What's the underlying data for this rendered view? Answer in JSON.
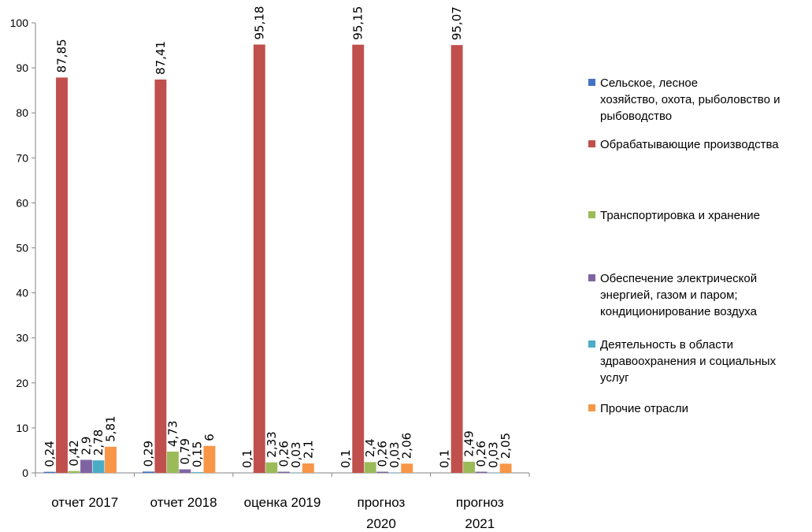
{
  "chart_data": {
    "type": "bar",
    "title": "",
    "xlabel": "",
    "ylabel": "",
    "ylim": [
      0,
      100
    ],
    "yticks": [
      "0",
      "10",
      "20",
      "30",
      "40",
      "50",
      "60",
      "70",
      "80",
      "90",
      "100"
    ],
    "categories": [
      "отчет 2017",
      "отчет 2018",
      "оценка 2019",
      "прогноз 2020",
      "прогноз 2021"
    ],
    "category_labels": [
      [
        "отчет 2017"
      ],
      [
        "отчет 2018"
      ],
      [
        "оценка 2019"
      ],
      [
        "прогноз",
        "2020"
      ],
      [
        "прогноз",
        "2021"
      ]
    ],
    "series": [
      {
        "name": "Сельское, лесное хозяйство, охота, рыболовство и рыбоводство",
        "color": "#4472C4",
        "values": [
          0.24,
          0.29,
          null,
          null,
          null
        ],
        "labels": [
          "0,24",
          "0,29",
          "",
          "",
          ""
        ]
      },
      {
        "name": "Обрабатывающие производства",
        "color": "#C0504D",
        "values": [
          87.85,
          87.41,
          95.18,
          95.15,
          95.07
        ],
        "labels": [
          "87,85",
          "87,41",
          "95,18",
          "95,15",
          "95,07"
        ]
      },
      {
        "name": "Транспортировка и хранение",
        "color": "#9BBB59",
        "values": [
          0.42,
          4.73,
          2.33,
          2.4,
          2.49
        ],
        "labels": [
          "0,42",
          "4,73",
          "2,33",
          "2,4",
          "2,49"
        ]
      },
      {
        "name": "Обеспечение электрической энергией, газом и паром; кондиционирование воздуха",
        "color": "#8064A2",
        "values": [
          2.9,
          0.79,
          0.26,
          0.26,
          0.26
        ],
        "labels": [
          "2,9",
          "0,79",
          "0,26",
          "0,26",
          "0,26"
        ]
      },
      {
        "name": "Деятельность в области здравоохранения и социальных услуг",
        "color": "#4BACC6",
        "values": [
          2.78,
          0.15,
          0.03,
          0.03,
          0.03
        ],
        "labels": [
          "2,78",
          "0,15",
          "0,03",
          "0,03",
          "0,03"
        ]
      },
      {
        "name": "Прочие отрасли",
        "color": "#F79646",
        "values": [
          5.81,
          6,
          2.1,
          2.06,
          2.05
        ],
        "labels": [
          "5,81",
          "6",
          "2,1",
          "2,06",
          "2,05"
        ]
      }
    ],
    "extra_labels": [
      "0,1",
      "0,1",
      "0,1"
    ],
    "legend_position": "right",
    "grid": false
  },
  "legend": [
    {
      "lines": [
        "Сельское, лесное",
        "хозяйство, охота, рыболовство и",
        "рыбоводство"
      ]
    },
    {
      "lines": [
        "Обрабатывающие производства"
      ]
    },
    {
      "lines": [
        "Транспортировка и хранение"
      ]
    },
    {
      "lines": [
        "Обеспечение электрической",
        "энергией, газом и паром;",
        "кондиционирование воздуха"
      ]
    },
    {
      "lines": [
        "Деятельность в области",
        "здравоохранения и социальных",
        "услуг"
      ]
    },
    {
      "lines": [
        "Прочие отрасли"
      ]
    }
  ]
}
